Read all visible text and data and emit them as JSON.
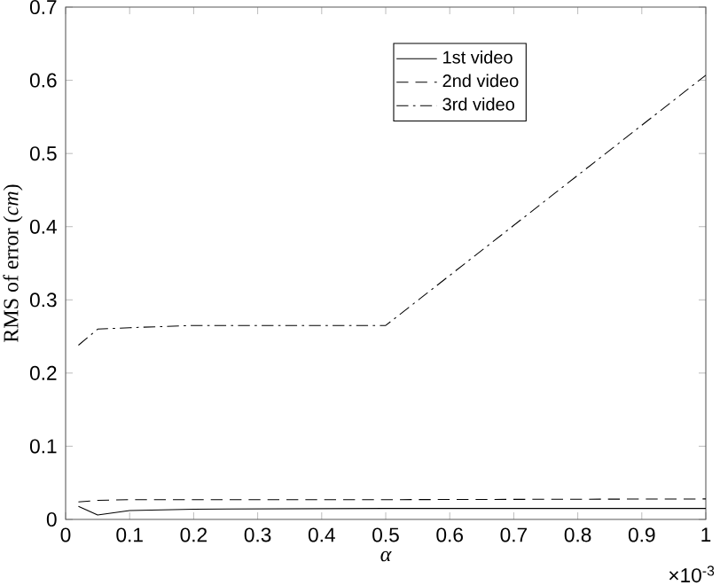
{
  "chart_data": {
    "type": "line",
    "xlabel": "α",
    "ylabel": "RMS of error (*cm*)",
    "series": [
      {
        "name": "1st video",
        "color": "#000000",
        "line_style": "solid",
        "x": [
          0.02,
          0.05,
          0.1,
          0.2,
          0.5,
          1
        ],
        "values": [
          0.018,
          0.006,
          0.012,
          0.014,
          0.015,
          0.015
        ]
      },
      {
        "name": "2nd video",
        "color": "#000000",
        "line_style": "dashed",
        "x": [
          0.02,
          0.05,
          0.1,
          0.2,
          0.5,
          1
        ],
        "values": [
          0.024,
          0.026,
          0.027,
          0.027,
          0.027,
          0.028
        ]
      },
      {
        "name": "3rd video",
        "color": "#000000",
        "line_style": "dashdot",
        "x": [
          0.02,
          0.05,
          0.1,
          0.2,
          0.5,
          1
        ],
        "values": [
          0.238,
          0.26,
          0.262,
          0.265,
          0.265,
          0.607
        ]
      }
    ],
    "xlim": [
      0,
      1
    ],
    "ylim": [
      0,
      0.7
    ],
    "xticks": [
      0,
      0.1,
      0.2,
      0.3,
      0.4,
      0.5,
      0.6,
      0.7,
      0.8,
      0.9,
      1
    ],
    "yticks": [
      0,
      0.1,
      0.2,
      0.3,
      0.4,
      0.5,
      0.6,
      0.7
    ],
    "legend": "top right",
    "grid": false,
    "marker": "none",
    "annotations": [
      "×10$^{-3}$"
    ]
  }
}
